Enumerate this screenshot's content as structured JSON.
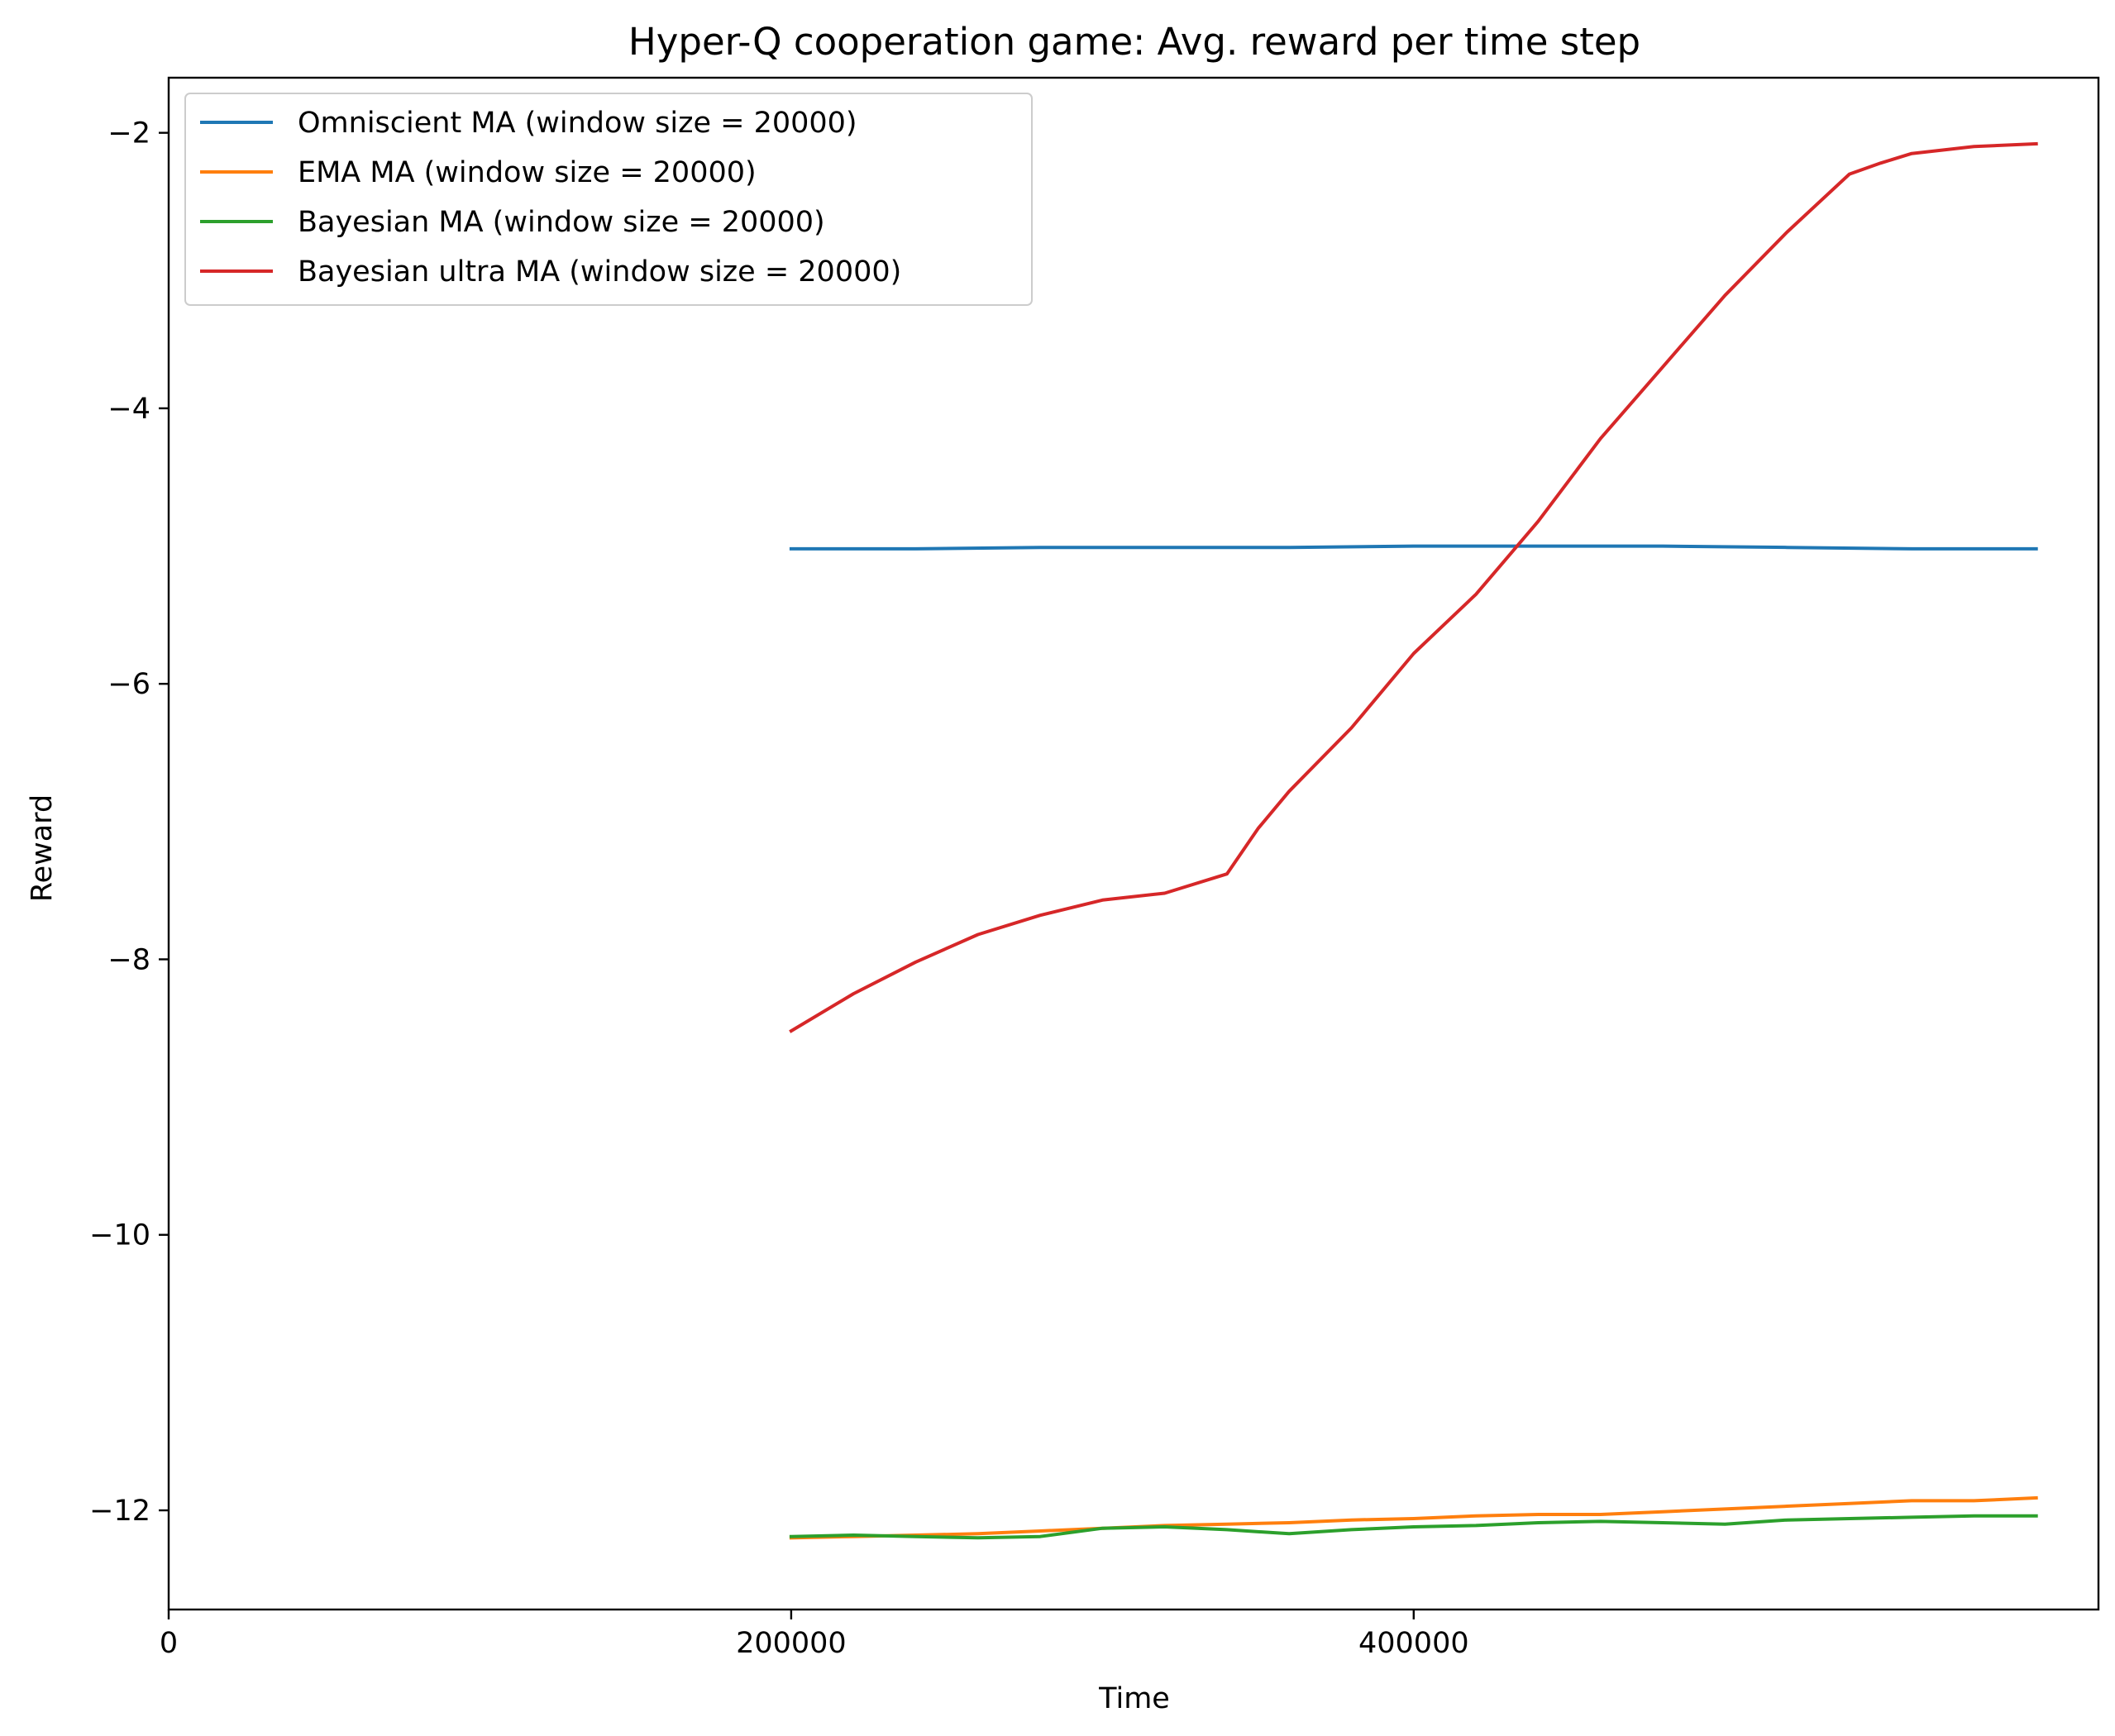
{
  "chart_data": {
    "type": "line",
    "title": "Hyper-Q cooperation game: Avg. reward per time step",
    "xlabel": "Time",
    "ylabel": "Reward",
    "xlim": [
      0,
      620000
    ],
    "ylim": [
      -12.72,
      -1.6
    ],
    "x_ticks": [
      {
        "value": 0,
        "label": "0"
      },
      {
        "value": 200000,
        "label": "200000"
      },
      {
        "value": 400000,
        "label": "400000"
      }
    ],
    "y_ticks": [
      {
        "value": -2,
        "label": "−2"
      },
      {
        "value": -4,
        "label": "−4"
      },
      {
        "value": -6,
        "label": "−6"
      },
      {
        "value": -8,
        "label": "−8"
      },
      {
        "value": -10,
        "label": "−10"
      },
      {
        "value": -12,
        "label": "−12"
      }
    ],
    "grid": false,
    "legend_position": "top-left",
    "series": [
      {
        "name": "Omniscient MA (window size = 20000)",
        "color": "#1f77b4",
        "x": [
          200000,
          240000,
          280000,
          320000,
          360000,
          400000,
          440000,
          480000,
          520000,
          560000,
          600000
        ],
        "values": [
          -5.02,
          -5.02,
          -5.01,
          -5.01,
          -5.01,
          -5.0,
          -5.0,
          -5.0,
          -5.01,
          -5.02,
          -5.02
        ]
      },
      {
        "name": "EMA MA (window size = 20000)",
        "color": "#ff7f0e",
        "x": [
          200000,
          220000,
          240000,
          260000,
          280000,
          300000,
          320000,
          340000,
          360000,
          380000,
          400000,
          420000,
          440000,
          460000,
          480000,
          500000,
          520000,
          540000,
          560000,
          580000,
          600000
        ],
        "values": [
          -12.2,
          -12.19,
          -12.18,
          -12.17,
          -12.15,
          -12.13,
          -12.11,
          -12.1,
          -12.09,
          -12.07,
          -12.06,
          -12.04,
          -12.03,
          -12.03,
          -12.01,
          -11.99,
          -11.97,
          -11.95,
          -11.93,
          -11.93,
          -11.91
        ]
      },
      {
        "name": "Bayesian MA (window size = 20000)",
        "color": "#2ca02c",
        "x": [
          200000,
          220000,
          240000,
          260000,
          280000,
          300000,
          320000,
          340000,
          360000,
          380000,
          400000,
          420000,
          440000,
          460000,
          480000,
          500000,
          520000,
          540000,
          560000,
          580000,
          600000
        ],
        "values": [
          -12.19,
          -12.18,
          -12.19,
          -12.2,
          -12.19,
          -12.13,
          -12.12,
          -12.14,
          -12.17,
          -12.14,
          -12.12,
          -12.11,
          -12.09,
          -12.08,
          -12.09,
          -12.1,
          -12.07,
          -12.06,
          -12.05,
          -12.04,
          -12.04
        ]
      },
      {
        "name": "Bayesian ultra MA (window size = 20000)",
        "color": "#d62728",
        "x": [
          200000,
          220000,
          240000,
          260000,
          280000,
          300000,
          320000,
          340000,
          350000,
          360000,
          380000,
          400000,
          420000,
          440000,
          460000,
          480000,
          500000,
          520000,
          540000,
          550000,
          560000,
          580000,
          600000
        ],
        "values": [
          -8.52,
          -8.25,
          -8.02,
          -7.82,
          -7.68,
          -7.57,
          -7.52,
          -7.38,
          -7.05,
          -6.78,
          -6.32,
          -5.78,
          -5.35,
          -4.82,
          -4.22,
          -3.7,
          -3.18,
          -2.72,
          -2.3,
          -2.22,
          -2.15,
          -2.1,
          -2.08
        ]
      }
    ]
  }
}
